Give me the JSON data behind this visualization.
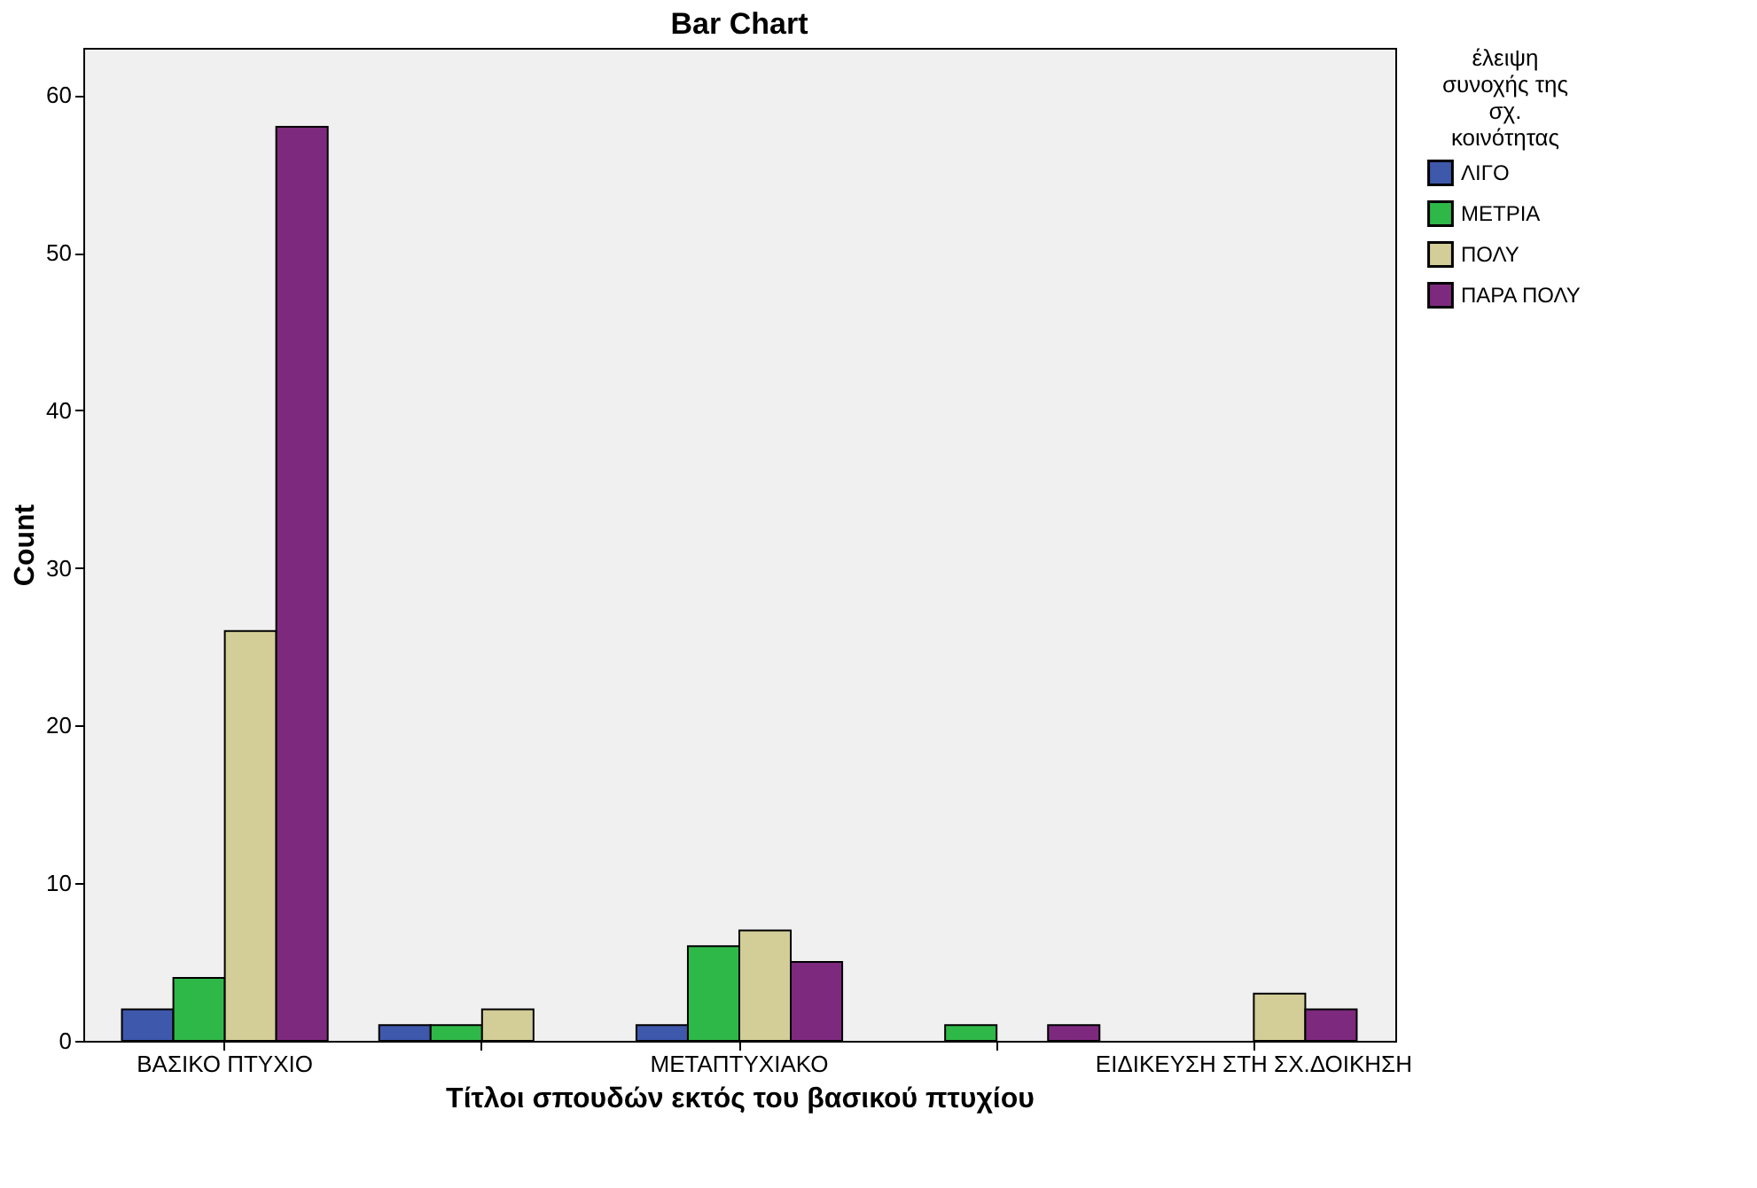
{
  "chart_data": {
    "type": "bar",
    "title": "Bar Chart",
    "xlabel": "Τίτλοι σπουδών εκτός του βασικού πτυχίου",
    "ylabel": "Count",
    "legend_title": "έλειψη συνοχής της σχ. κοινότητας",
    "categories": [
      "ΒΑΣΙΚΟ ΠΤΥΧΙΟ",
      null,
      "ΜΕΤΑΠΤΥΧΙΑΚΟ",
      null,
      "ΕΙΔΙΚΕΥΣΗ ΣΤΗ ΣΧ.ΔΟΙΚΗΣΗ"
    ],
    "series": [
      {
        "name": "ΛΙΓΟ",
        "color": "#3e58ac",
        "values": [
          2,
          1,
          1,
          null,
          null
        ]
      },
      {
        "name": "ΜΕΤΡΙΑ",
        "color": "#2eb848",
        "values": [
          4,
          1,
          6,
          1,
          null
        ]
      },
      {
        "name": "ΠΟΛΥ",
        "color": "#d3ce97",
        "values": [
          26,
          2,
          7,
          null,
          3
        ]
      },
      {
        "name": "ΠΑΡΑ ΠΟΛΥ",
        "color": "#7d2a7e",
        "values": [
          58,
          null,
          5,
          1,
          2
        ]
      }
    ],
    "ylim": [
      0,
      63
    ],
    "yticks": [
      0,
      10,
      20,
      30,
      40,
      50,
      60
    ],
    "grid": false,
    "legend": "right"
  }
}
